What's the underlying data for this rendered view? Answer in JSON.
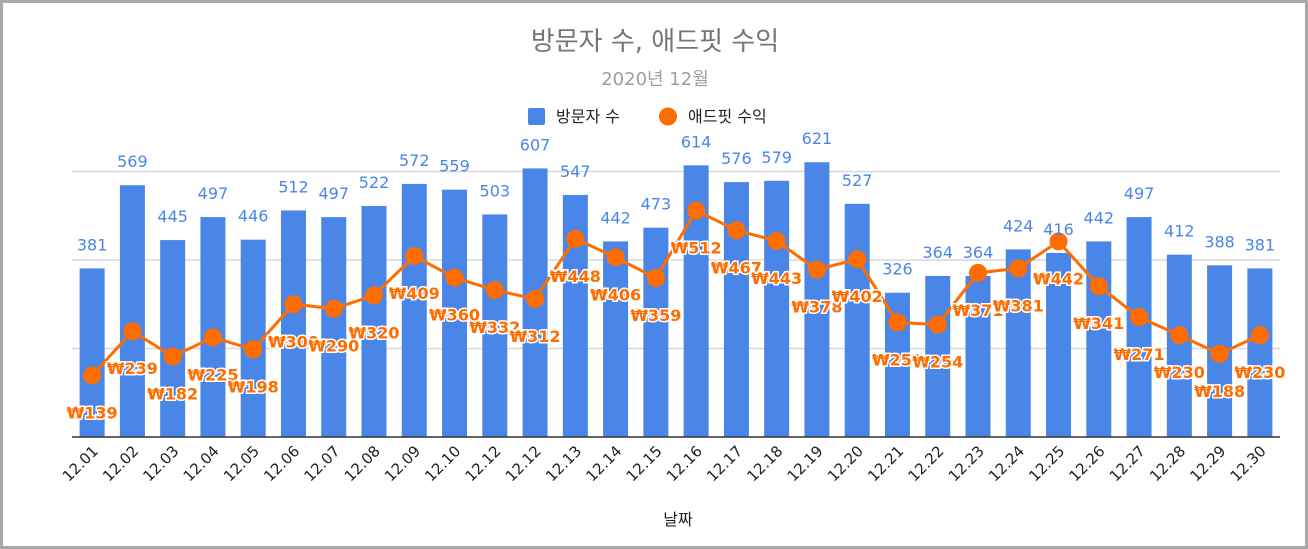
{
  "chart_data": {
    "type": "bar",
    "title": "방문자 수, 애드핏 수익",
    "subtitle": "2020년 12월",
    "xlabel": "날짜",
    "ylabel": "",
    "legend_position": "top-center",
    "grid": true,
    "ylim": [
      0,
      800
    ],
    "y2lim": [
      0,
      800
    ],
    "categories": [
      "12.01",
      "12.02",
      "12.03",
      "12.04",
      "12.05",
      "12.06",
      "12.07",
      "12.08",
      "12.09",
      "12.10",
      "12.12",
      "12.12",
      "12.13",
      "12.14",
      "12.15",
      "12.16",
      "12.17",
      "12.18",
      "12.19",
      "12.20",
      "12.21",
      "12.22",
      "12.23",
      "12.24",
      "12.25",
      "12.26",
      "12.27",
      "12.28",
      "12.29",
      "12.30"
    ],
    "series": [
      {
        "name": "방문자 수",
        "type": "bar",
        "color": "#4a86e8",
        "values": [
          381,
          569,
          445,
          497,
          446,
          512,
          497,
          522,
          572,
          559,
          503,
          607,
          547,
          442,
          473,
          614,
          576,
          579,
          621,
          527,
          326,
          364,
          364,
          424,
          416,
          442,
          497,
          412,
          388,
          381
        ],
        "labels": [
          "381",
          "569",
          "445",
          "497",
          "446",
          "512",
          "497",
          "522",
          "572",
          "559",
          "503",
          "607",
          "547",
          "442",
          "473",
          "614",
          "576",
          "579",
          "621",
          "527",
          "326",
          "364",
          "364",
          "424",
          "416",
          "442",
          "497",
          "412",
          "388",
          "381"
        ]
      },
      {
        "name": "애드핏 수익",
        "type": "line",
        "color": "#ff6d01",
        "values": [
          139,
          239,
          182,
          225,
          198,
          300,
          290,
          320,
          409,
          360,
          332,
          312,
          448,
          406,
          359,
          512,
          467,
          443,
          378,
          402,
          259,
          254,
          371,
          381,
          442,
          341,
          271,
          230,
          188,
          230
        ],
        "labels": [
          "₩139",
          "₩239",
          "₩182",
          "₩225",
          "₩198",
          "₩300",
          "₩290",
          "₩320",
          "₩409",
          "₩360",
          "₩332",
          "₩312",
          "₩448",
          "₩406",
          "₩359",
          "₩512",
          "₩467",
          "₩443",
          "₩378",
          "₩402",
          "₩259",
          "₩254",
          "₩371",
          "₩381",
          "₩442",
          "₩341",
          "₩271",
          "₩230",
          "₩188",
          "₩230"
        ]
      }
    ]
  }
}
